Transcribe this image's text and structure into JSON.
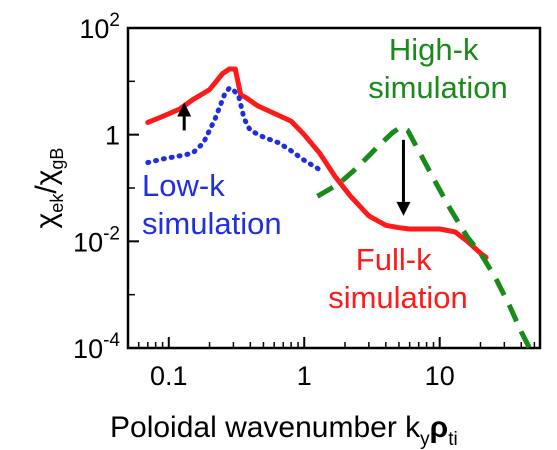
{
  "chart_data": {
    "type": "line",
    "x_scale": "log",
    "y_scale": "log",
    "xlim": [
      0.05,
      55
    ],
    "ylim": [
      0.0001,
      100
    ],
    "x_ticks": [
      {
        "value": 0.1,
        "label": "0.1"
      },
      {
        "value": 1,
        "label": "1"
      },
      {
        "value": 10,
        "label": "10"
      }
    ],
    "y_ticks": [
      {
        "value": 100,
        "base": "10",
        "exp": "2"
      },
      {
        "value": 1,
        "base": "1",
        "exp": ""
      },
      {
        "value": 0.01,
        "base": "10",
        "exp": "-2"
      },
      {
        "value": 0.0001,
        "base": "10",
        "exp": "-4"
      }
    ],
    "xlabel": {
      "main": "Poloidal wavenumber k",
      "sub": "y",
      "rho": "ρ",
      "rho_sub": "ti"
    },
    "ylabel": {
      "chi1": "χ",
      "sub1": "ek",
      "slash": "/",
      "chi2": "χ",
      "sub2": "gB"
    },
    "series": [
      {
        "color": "#ff1a1a",
        "style": "solid",
        "x": [
          0.07,
          0.09,
          0.12,
          0.15,
          0.2,
          0.25,
          0.28,
          0.31,
          0.34,
          0.37,
          0.45,
          0.6,
          0.8,
          1.0,
          1.3,
          1.7,
          2.2,
          3.0,
          4.0,
          5.0,
          6.0,
          8.0,
          10.0,
          13.0,
          16.0,
          20.0,
          22.0
        ],
        "y": [
          1.7,
          2.2,
          3.0,
          4.5,
          7.0,
          14.0,
          17.0,
          17.0,
          5.5,
          5.0,
          3.5,
          2.5,
          1.8,
          1.0,
          0.45,
          0.16,
          0.07,
          0.03,
          0.02,
          0.018,
          0.017,
          0.017,
          0.017,
          0.015,
          0.01,
          0.006,
          0.005
        ]
      },
      {
        "color": "#1f2fe0",
        "style": "dotted",
        "x": [
          0.07,
          0.09,
          0.12,
          0.15,
          0.18,
          0.22,
          0.26,
          0.28,
          0.3,
          0.33,
          0.36,
          0.4,
          0.5,
          0.65,
          0.8,
          1.0,
          1.3
        ],
        "y": [
          0.3,
          0.35,
          0.4,
          0.45,
          0.7,
          2.0,
          6.0,
          7.5,
          7.0,
          5.0,
          2.0,
          1.2,
          0.9,
          0.7,
          0.5,
          0.33,
          0.22
        ]
      },
      {
        "color": "#1a8a1a",
        "style": "dashed",
        "x": [
          1.25,
          1.8,
          2.5,
          3.5,
          4.5,
          5.2,
          5.8,
          7.0,
          9.0,
          12.0,
          16.0,
          20.0,
          26.0,
          33.0,
          40.0,
          46.0
        ],
        "y": [
          0.07,
          0.12,
          0.25,
          0.6,
          1.1,
          1.4,
          1.2,
          0.5,
          0.15,
          0.04,
          0.012,
          0.006,
          0.002,
          0.0006,
          0.0002,
          0.0001
        ]
      }
    ],
    "annotations": [
      {
        "lines": [
          "High-k",
          "simulation"
        ],
        "color": "#1a8a1a"
      },
      {
        "lines": [
          "Low-k",
          "simulation"
        ],
        "color": "#1f2fe0"
      },
      {
        "lines": [
          "Full-k",
          "simulation"
        ],
        "color": "#ff1a1a"
      }
    ],
    "arrows": [
      {
        "x": 0.13,
        "y_from": 1.2,
        "y_to": 4.0,
        "direction": "up"
      },
      {
        "x": 5.4,
        "y_from": 0.8,
        "y_to": 0.03,
        "direction": "down"
      }
    ],
    "grid": false,
    "legend": "none"
  }
}
